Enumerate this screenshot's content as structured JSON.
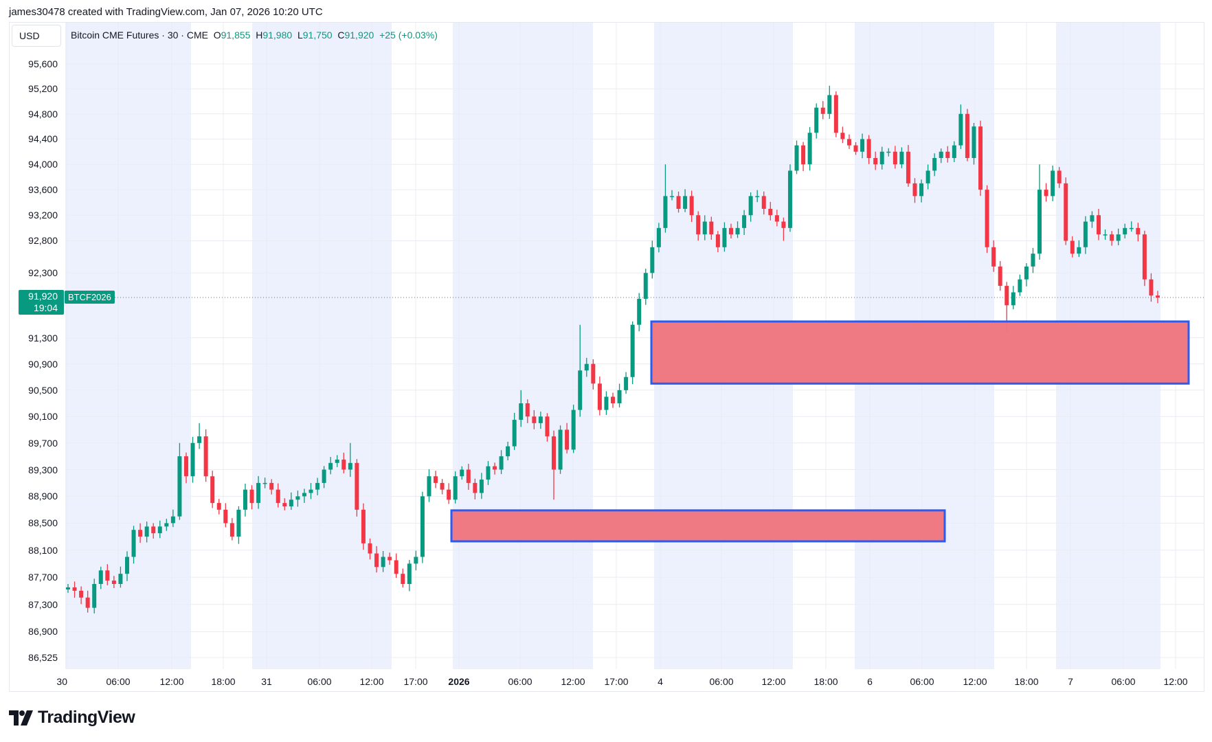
{
  "header": {
    "attribution": "james30478 created with TradingView.com, Jan 07, 2026 10:20 UTC"
  },
  "currency_button": "USD",
  "legend": {
    "symbol": "Bitcoin CME Futures · 30 · CME",
    "o_label": "O",
    "o": "91,855",
    "h_label": "H",
    "h": "91,980",
    "l_label": "L",
    "l": "91,750",
    "c_label": "C",
    "c": "91,920",
    "change": "+25 (+0.03%)"
  },
  "last_price": {
    "price": "91,920",
    "countdown": "19:04",
    "ticker_tag": "BTCF2026",
    "value": 91920
  },
  "colors": {
    "up": "#089981",
    "down": "#f23645",
    "session_band": "#edf1fd",
    "zone_fill": "#f07680",
    "zone_border": "#2b5bf0"
  },
  "logo": {
    "text": "TradingView"
  },
  "chart_data": {
    "type": "candlestick",
    "scale": "log",
    "grid": true,
    "y_ticks": [
      95600,
      95200,
      94800,
      94400,
      94000,
      93600,
      93200,
      92800,
      92300,
      91300,
      90900,
      90500,
      90100,
      89700,
      89300,
      88900,
      88500,
      88100,
      87700,
      87300,
      86900,
      86525
    ],
    "y_tick_labels": [
      "95,600",
      "95,200",
      "94,800",
      "94,400",
      "94,000",
      "93,600",
      "93,200",
      "92,800",
      "92,300",
      "91,300",
      "90,900",
      "90,500",
      "90,100",
      "89,700",
      "89,300",
      "88,900",
      "88,500",
      "88,100",
      "87,700",
      "87,300",
      "86,900",
      "86,525"
    ],
    "x_tick_labels": [
      "30",
      "06:00",
      "12:00",
      "18:00",
      "31",
      "06:00",
      "12:00",
      "17:00",
      "2026",
      "06:00",
      "12:00",
      "17:00",
      "4",
      "06:00",
      "12:00",
      "18:00",
      "6",
      "06:00",
      "12:00",
      "18:00",
      "7",
      "06:00",
      "12:00"
    ],
    "zones": [
      {
        "top": 91550,
        "bottom": 90600
      },
      {
        "top": 88690,
        "bottom": 88230
      }
    ],
    "closes": [
      87550,
      87500,
      87400,
      87250,
      87600,
      87800,
      87650,
      87600,
      87750,
      88000,
      88400,
      88300,
      88450,
      88350,
      88450,
      88500,
      88600,
      89500,
      89200,
      89700,
      89800,
      89200,
      88800,
      88700,
      88500,
      88300,
      88700,
      89000,
      88800,
      89100,
      89100,
      89000,
      88800,
      88750,
      88850,
      88900,
      88950,
      89000,
      89100,
      89300,
      89400,
      89450,
      89300,
      89400,
      88700,
      88200,
      88050,
      87850,
      88000,
      87950,
      87750,
      87600,
      87900,
      88000,
      88900,
      89200,
      89100,
      89000,
      88850,
      89200,
      89300,
      89100,
      88950,
      89150,
      89350,
      89300,
      89500,
      89650,
      90050,
      90300,
      90100,
      90000,
      90100,
      89800,
      89300,
      89900,
      89600,
      90200,
      90800,
      90900,
      90600,
      90200,
      90400,
      90300,
      90500,
      90700,
      91500,
      91900,
      92300,
      92700,
      93000,
      93500,
      93500,
      93300,
      93500,
      93200,
      92900,
      93100,
      92900,
      92700,
      93000,
      92900,
      93000,
      93200,
      93500,
      93500,
      93300,
      93200,
      93100,
      93000,
      93900,
      94300,
      94000,
      94500,
      94900,
      94800,
      95100,
      94500,
      94400,
      94300,
      94200,
      94400,
      94100,
      94000,
      94200,
      94200,
      94000,
      94200,
      93700,
      93500,
      93700,
      93900,
      94100,
      94200,
      94100,
      94300,
      94800,
      94100,
      94600,
      93600,
      92700,
      92400,
      92100,
      91800,
      92000,
      92200,
      92400,
      92600,
      93600,
      93500,
      93900,
      93700,
      92800,
      92600,
      92700,
      93100,
      93200,
      92900,
      92900,
      92800,
      92900,
      93000,
      93000,
      92900,
      92200,
      91950,
      91920
    ],
    "first_open": 87520,
    "extreme_wicks": {
      "3": 87180,
      "17": 89700,
      "20": 90000,
      "43": 89700,
      "51": 87550,
      "69": 90500,
      "74": 88850,
      "78": 91500,
      "91": 94000,
      "109": 92800,
      "116": 95250,
      "136": 94950,
      "143": 91380,
      "148": 94000
    }
  }
}
